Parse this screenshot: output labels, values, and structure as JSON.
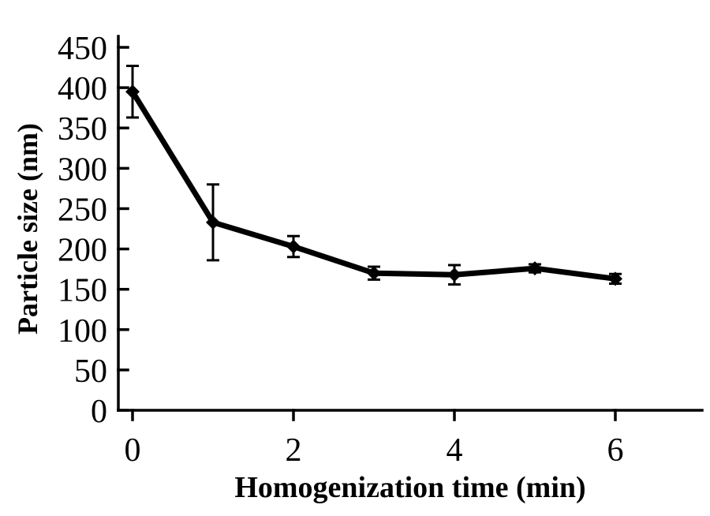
{
  "figure": {
    "background": "#ffffff"
  },
  "chart_data": {
    "type": "line",
    "title": "",
    "xlabel": "Homogenization time (min)",
    "ylabel": "Particle size (nm)",
    "x": [
      0,
      1,
      2,
      3,
      4,
      5,
      6
    ],
    "series": [
      {
        "name": "Particle size",
        "values": [
          395,
          233,
          203,
          170,
          168,
          176,
          163
        ],
        "errors": [
          32,
          47,
          13,
          8,
          12,
          5,
          6
        ],
        "color": "#000000",
        "marker": "diamond",
        "line_width": 7
      }
    ],
    "xlim": [
      0,
      7.1
    ],
    "ylim": [
      0,
      450
    ],
    "xticks": [
      0,
      2,
      4,
      6
    ],
    "yticks": [
      0,
      50,
      100,
      150,
      200,
      250,
      300,
      350,
      400,
      450
    ],
    "grid": false,
    "legend": "none",
    "axis_color": "#000000"
  }
}
